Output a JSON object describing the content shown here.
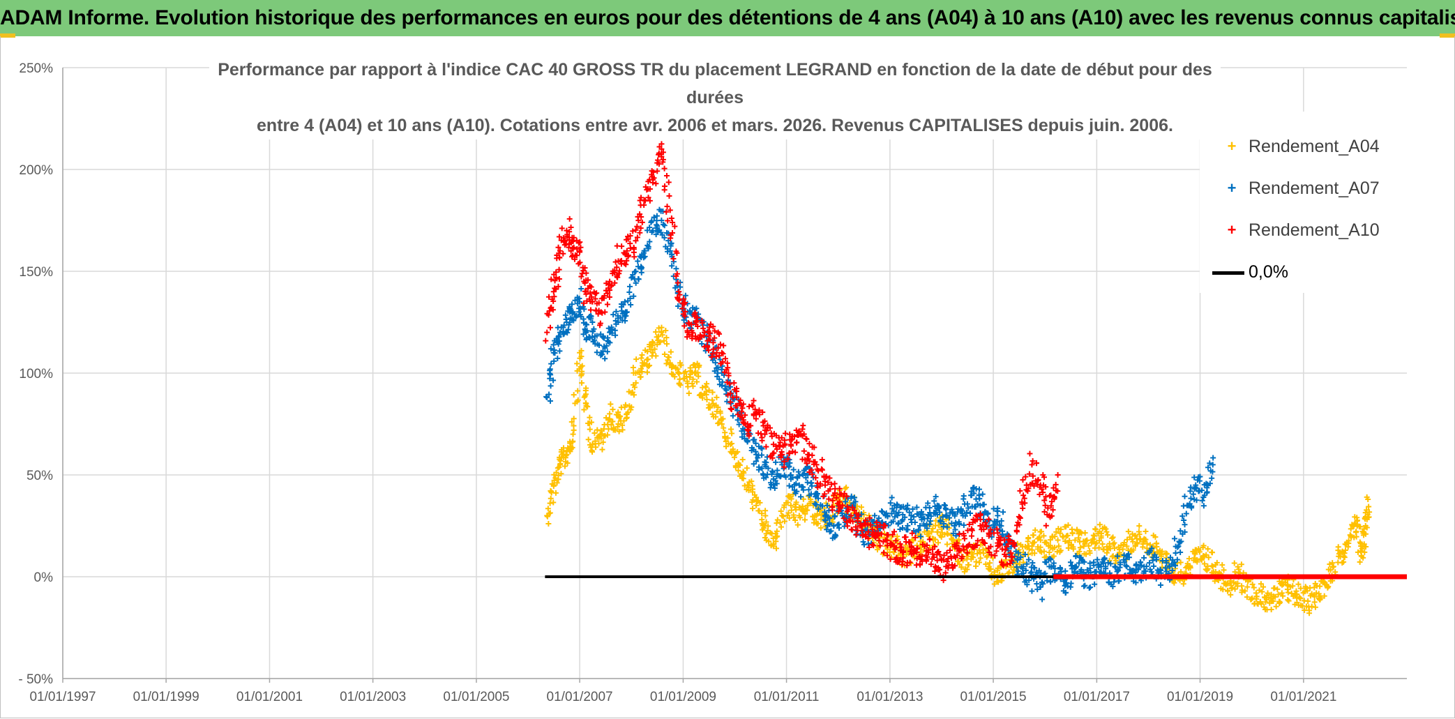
{
  "banner": {
    "title": "ADAM Informe. Evolution historique des performances en euros pour des détentions de 4 ans (A04) à 10 ans (A10) avec les revenus connus capitalisés"
  },
  "colors": {
    "banner_bg": "#7dc97a",
    "a04": "#ffc000",
    "a07": "#0070c0",
    "a10": "#ff0000",
    "zero_line": "#000000",
    "grid": "#d9d9d9",
    "axis_text": "#595959"
  },
  "chart_data": {
    "type": "scatter",
    "title_line1": "Performance par rapport à l'indice CAC 40 GROSS TR  du placement LEGRAND en fonction de la date de début pour des durées",
    "title_line2": "entre 4 (A04) et 10 ans (A10). Cotations entre avr. 2006 et mars. 2026. Revenus CAPITALISES depuis juin. 2006.",
    "xlabel": "",
    "ylabel": "",
    "x_range": [
      "1997-01-01",
      "2023-01-01"
    ],
    "x_ticks": [
      "01/01/1997",
      "01/01/1999",
      "01/01/2001",
      "01/01/2003",
      "01/01/2005",
      "01/01/2007",
      "01/01/2009",
      "01/01/2011",
      "01/01/2013",
      "01/01/2015",
      "01/01/2017",
      "01/01/2019",
      "01/01/2021"
    ],
    "y_range": [
      -50,
      250
    ],
    "y_ticks": [
      {
        "value": 250,
        "label": "250%"
      },
      {
        "value": 200,
        "label": "200%"
      },
      {
        "value": 150,
        "label": "150%"
      },
      {
        "value": 100,
        "label": "100%"
      },
      {
        "value": 50,
        "label": "50%"
      },
      {
        "value": 0,
        "label": "0%"
      },
      {
        "value": -50,
        "label": "- 50%"
      }
    ],
    "grid": true,
    "legend_position": "top-right",
    "series": [
      {
        "name": "Rendement_A04",
        "color": "#ffc000",
        "marker": "+",
        "points": [
          [
            "2006-05-15",
            30
          ],
          [
            "2006-07-01",
            45
          ],
          [
            "2006-08-15",
            55
          ],
          [
            "2006-10-01",
            60
          ],
          [
            "2006-11-15",
            70
          ],
          [
            "2007-01-01",
            110
          ],
          [
            "2007-02-15",
            85
          ],
          [
            "2007-04-01",
            65
          ],
          [
            "2007-06-01",
            68
          ],
          [
            "2007-08-01",
            80
          ],
          [
            "2007-10-01",
            75
          ],
          [
            "2007-12-01",
            80
          ],
          [
            "2008-02-01",
            100
          ],
          [
            "2008-04-01",
            105
          ],
          [
            "2008-06-01",
            110
          ],
          [
            "2008-08-01",
            120
          ],
          [
            "2008-10-01",
            105
          ],
          [
            "2008-12-01",
            100
          ],
          [
            "2009-02-01",
            95
          ],
          [
            "2009-04-01",
            100
          ],
          [
            "2009-06-01",
            90
          ],
          [
            "2009-08-01",
            85
          ],
          [
            "2009-10-01",
            75
          ],
          [
            "2009-12-01",
            65
          ],
          [
            "2010-02-01",
            55
          ],
          [
            "2010-04-01",
            45
          ],
          [
            "2010-06-01",
            35
          ],
          [
            "2010-08-01",
            25
          ],
          [
            "2010-10-01",
            15
          ],
          [
            "2010-12-01",
            30
          ],
          [
            "2011-02-01",
            35
          ],
          [
            "2011-04-01",
            30
          ],
          [
            "2011-06-01",
            35
          ],
          [
            "2011-08-01",
            30
          ],
          [
            "2011-10-01",
            28
          ],
          [
            "2011-12-01",
            35
          ],
          [
            "2012-02-01",
            40
          ],
          [
            "2012-04-01",
            35
          ],
          [
            "2012-06-01",
            30
          ],
          [
            "2012-08-01",
            25
          ],
          [
            "2012-10-01",
            20
          ],
          [
            "2012-12-01",
            15
          ],
          [
            "2013-02-01",
            15
          ],
          [
            "2013-04-01",
            10
          ],
          [
            "2013-06-01",
            12
          ],
          [
            "2013-08-01",
            15
          ],
          [
            "2013-10-01",
            20
          ],
          [
            "2013-12-01",
            22
          ],
          [
            "2014-02-01",
            25
          ],
          [
            "2014-04-01",
            15
          ],
          [
            "2014-06-01",
            8
          ],
          [
            "2014-08-01",
            10
          ],
          [
            "2014-10-01",
            12
          ],
          [
            "2014-12-01",
            5
          ],
          [
            "2015-02-01",
            0
          ],
          [
            "2015-04-01",
            5
          ],
          [
            "2015-06-01",
            8
          ],
          [
            "2015-08-01",
            12
          ],
          [
            "2015-10-01",
            15
          ],
          [
            "2015-12-01",
            18
          ],
          [
            "2016-02-01",
            12
          ],
          [
            "2016-04-01",
            18
          ],
          [
            "2016-06-01",
            20
          ],
          [
            "2016-08-01",
            18
          ],
          [
            "2016-10-01",
            15
          ],
          [
            "2016-12-01",
            18
          ],
          [
            "2017-02-01",
            20
          ],
          [
            "2017-04-01",
            15
          ],
          [
            "2017-06-01",
            10
          ],
          [
            "2017-08-01",
            15
          ],
          [
            "2017-10-01",
            20
          ],
          [
            "2017-12-01",
            18
          ],
          [
            "2018-02-01",
            15
          ],
          [
            "2018-04-01",
            10
          ],
          [
            "2018-06-01",
            5
          ],
          [
            "2018-08-01",
            0
          ],
          [
            "2018-10-01",
            5
          ],
          [
            "2018-12-01",
            8
          ],
          [
            "2019-02-01",
            10
          ],
          [
            "2019-04-01",
            5
          ],
          [
            "2019-06-01",
            0
          ],
          [
            "2019-08-01",
            -3
          ],
          [
            "2019-10-01",
            2
          ],
          [
            "2019-12-01",
            -5
          ],
          [
            "2020-02-01",
            -8
          ],
          [
            "2020-04-01",
            -10
          ],
          [
            "2020-06-01",
            -12
          ],
          [
            "2020-08-01",
            -8
          ],
          [
            "2020-10-01",
            -5
          ],
          [
            "2020-12-01",
            -10
          ],
          [
            "2021-02-01",
            -12
          ],
          [
            "2021-04-01",
            -8
          ],
          [
            "2021-06-01",
            -3
          ],
          [
            "2021-08-01",
            5
          ],
          [
            "2021-10-01",
            12
          ],
          [
            "2021-12-01",
            20
          ],
          [
            "2022-01-15",
            25
          ],
          [
            "2022-02-15",
            10
          ],
          [
            "2022-03-15",
            25
          ],
          [
            "2022-04-01",
            38
          ]
        ]
      },
      {
        "name": "Rendement_A07",
        "color": "#0070c0",
        "marker": "+",
        "points": [
          [
            "2006-05-15",
            88
          ],
          [
            "2006-07-01",
            110
          ],
          [
            "2006-08-15",
            120
          ],
          [
            "2006-10-01",
            125
          ],
          [
            "2006-11-15",
            130
          ],
          [
            "2007-01-01",
            135
          ],
          [
            "2007-02-15",
            120
          ],
          [
            "2007-04-01",
            125
          ],
          [
            "2007-06-01",
            110
          ],
          [
            "2007-08-01",
            120
          ],
          [
            "2007-10-01",
            125
          ],
          [
            "2007-12-01",
            130
          ],
          [
            "2008-02-01",
            150
          ],
          [
            "2008-04-01",
            160
          ],
          [
            "2008-06-01",
            170
          ],
          [
            "2008-08-01",
            175
          ],
          [
            "2008-10-01",
            160
          ],
          [
            "2008-12-01",
            140
          ],
          [
            "2009-02-01",
            130
          ],
          [
            "2009-04-01",
            125
          ],
          [
            "2009-06-01",
            120
          ],
          [
            "2009-08-01",
            110
          ],
          [
            "2009-10-01",
            100
          ],
          [
            "2009-12-01",
            90
          ],
          [
            "2010-02-01",
            80
          ],
          [
            "2010-04-01",
            70
          ],
          [
            "2010-06-01",
            60
          ],
          [
            "2010-08-01",
            55
          ],
          [
            "2010-10-01",
            48
          ],
          [
            "2010-12-01",
            55
          ],
          [
            "2011-02-01",
            50
          ],
          [
            "2011-04-01",
            45
          ],
          [
            "2011-06-01",
            50
          ],
          [
            "2011-08-01",
            40
          ],
          [
            "2011-10-01",
            30
          ],
          [
            "2011-12-01",
            25
          ],
          [
            "2012-02-01",
            30
          ],
          [
            "2012-04-01",
            35
          ],
          [
            "2012-06-01",
            25
          ],
          [
            "2012-08-01",
            20
          ],
          [
            "2012-10-01",
            25
          ],
          [
            "2012-12-01",
            30
          ],
          [
            "2013-02-01",
            35
          ],
          [
            "2013-04-01",
            28
          ],
          [
            "2013-06-01",
            30
          ],
          [
            "2013-08-01",
            25
          ],
          [
            "2013-10-01",
            30
          ],
          [
            "2013-12-01",
            35
          ],
          [
            "2014-02-01",
            30
          ],
          [
            "2014-04-01",
            25
          ],
          [
            "2014-06-01",
            30
          ],
          [
            "2014-08-01",
            40
          ],
          [
            "2014-10-01",
            35
          ],
          [
            "2014-12-01",
            25
          ],
          [
            "2015-02-01",
            30
          ],
          [
            "2015-04-01",
            20
          ],
          [
            "2015-06-01",
            10
          ],
          [
            "2015-08-01",
            5
          ],
          [
            "2015-10-01",
            0
          ],
          [
            "2015-12-01",
            -5
          ],
          [
            "2016-02-01",
            5
          ],
          [
            "2016-04-01",
            0
          ],
          [
            "2016-06-01",
            -3
          ],
          [
            "2016-08-01",
            5
          ],
          [
            "2016-10-01",
            2
          ],
          [
            "2016-12-01",
            0
          ],
          [
            "2017-02-01",
            5
          ],
          [
            "2017-04-01",
            0
          ],
          [
            "2017-06-01",
            3
          ],
          [
            "2017-08-01",
            5
          ],
          [
            "2017-10-01",
            2
          ],
          [
            "2017-12-01",
            5
          ],
          [
            "2018-02-01",
            8
          ],
          [
            "2018-04-01",
            0
          ],
          [
            "2018-06-01",
            5
          ],
          [
            "2018-08-01",
            15
          ],
          [
            "2018-10-01",
            35
          ],
          [
            "2018-12-01",
            45
          ],
          [
            "2019-02-01",
            40
          ],
          [
            "2019-04-01",
            55
          ]
        ]
      },
      {
        "name": "Rendement_A10",
        "color": "#ff0000",
        "marker": "+",
        "points": [
          [
            "2006-05-15",
            120
          ],
          [
            "2006-07-01",
            140
          ],
          [
            "2006-08-15",
            160
          ],
          [
            "2006-10-01",
            170
          ],
          [
            "2006-11-15",
            165
          ],
          [
            "2007-01-01",
            160
          ],
          [
            "2007-02-15",
            140
          ],
          [
            "2007-04-01",
            135
          ],
          [
            "2007-06-01",
            130
          ],
          [
            "2007-08-01",
            145
          ],
          [
            "2007-10-01",
            155
          ],
          [
            "2007-12-01",
            160
          ],
          [
            "2008-02-01",
            165
          ],
          [
            "2008-04-01",
            185
          ],
          [
            "2008-06-01",
            195
          ],
          [
            "2008-08-01",
            210
          ],
          [
            "2008-10-01",
            180
          ],
          [
            "2008-12-01",
            140
          ],
          [
            "2009-02-01",
            120
          ],
          [
            "2009-04-01",
            125
          ],
          [
            "2009-06-01",
            120
          ],
          [
            "2009-08-01",
            115
          ],
          [
            "2009-10-01",
            110
          ],
          [
            "2009-12-01",
            90
          ],
          [
            "2010-02-01",
            85
          ],
          [
            "2010-04-01",
            75
          ],
          [
            "2010-06-01",
            80
          ],
          [
            "2010-08-01",
            70
          ],
          [
            "2010-10-01",
            65
          ],
          [
            "2010-12-01",
            60
          ],
          [
            "2011-02-01",
            65
          ],
          [
            "2011-04-01",
            70
          ],
          [
            "2011-06-01",
            60
          ],
          [
            "2011-08-01",
            55
          ],
          [
            "2011-10-01",
            45
          ],
          [
            "2011-12-01",
            40
          ],
          [
            "2012-02-01",
            35
          ],
          [
            "2012-04-01",
            30
          ],
          [
            "2012-06-01",
            25
          ],
          [
            "2012-08-01",
            22
          ],
          [
            "2012-10-01",
            20
          ],
          [
            "2012-12-01",
            18
          ],
          [
            "2013-02-01",
            15
          ],
          [
            "2013-04-01",
            12
          ],
          [
            "2013-06-01",
            15
          ],
          [
            "2013-08-01",
            10
          ],
          [
            "2013-10-01",
            12
          ],
          [
            "2013-12-01",
            8
          ],
          [
            "2014-02-01",
            5
          ],
          [
            "2014-04-01",
            10
          ],
          [
            "2014-06-01",
            15
          ],
          [
            "2014-08-01",
            20
          ],
          [
            "2014-10-01",
            25
          ],
          [
            "2014-12-01",
            20
          ],
          [
            "2015-02-01",
            15
          ],
          [
            "2015-04-01",
            10
          ],
          [
            "2015-06-01",
            15
          ],
          [
            "2015-08-01",
            40
          ],
          [
            "2015-10-01",
            55
          ],
          [
            "2015-12-01",
            45
          ],
          [
            "2016-02-01",
            30
          ],
          [
            "2016-04-01",
            50
          ]
        ]
      },
      {
        "name": "0,0%",
        "color": "#000000",
        "marker": "line",
        "points": [
          [
            "2006-05-01",
            0
          ],
          [
            "2016-03-01",
            0
          ]
        ]
      }
    ],
    "extra_marks": [
      {
        "series": "Rendement_A10",
        "note": "",
        "points": [
          [
            "2016-03-01",
            0
          ],
          [
            "2023-01-01",
            0
          ]
        ]
      }
    ]
  }
}
